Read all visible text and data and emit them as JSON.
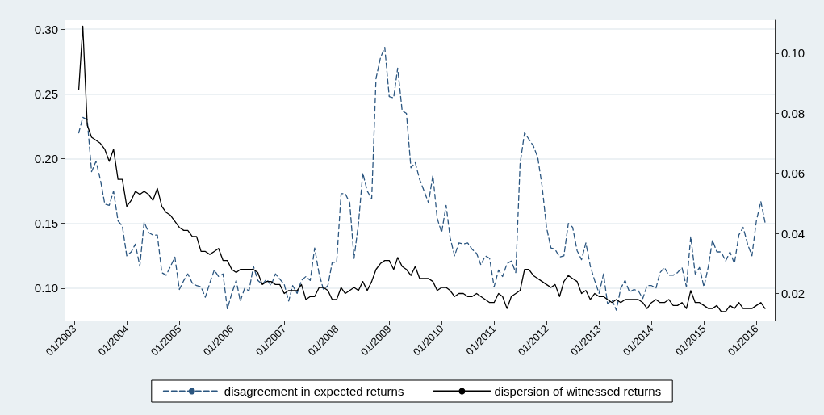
{
  "chart_data": {
    "type": "line",
    "x": [
      "2003-02",
      "2003-03",
      "2003-04",
      "2003-05",
      "2003-06",
      "2003-07",
      "2003-08",
      "2003-09",
      "2003-10",
      "2003-11",
      "2003-12",
      "2004-01",
      "2004-02",
      "2004-03",
      "2004-04",
      "2004-05",
      "2004-06",
      "2004-07",
      "2004-08",
      "2004-09",
      "2004-10",
      "2004-11",
      "2004-12",
      "2005-01",
      "2005-02",
      "2005-03",
      "2005-04",
      "2005-05",
      "2005-06",
      "2005-07",
      "2005-08",
      "2005-09",
      "2005-10",
      "2005-11",
      "2005-12",
      "2006-01",
      "2006-02",
      "2006-03",
      "2006-04",
      "2006-05",
      "2006-06",
      "2006-07",
      "2006-08",
      "2006-09",
      "2006-10",
      "2006-11",
      "2006-12",
      "2007-01",
      "2007-02",
      "2007-03",
      "2007-04",
      "2007-05",
      "2007-06",
      "2007-07",
      "2007-08",
      "2007-09",
      "2007-10",
      "2007-11",
      "2007-12",
      "2008-01",
      "2008-02",
      "2008-03",
      "2008-04",
      "2008-05",
      "2008-06",
      "2008-07",
      "2008-08",
      "2008-09",
      "2008-10",
      "2008-11",
      "2008-12",
      "2009-01",
      "2009-02",
      "2009-03",
      "2009-04",
      "2009-05",
      "2009-06",
      "2009-07",
      "2009-08",
      "2009-09",
      "2009-10",
      "2009-11",
      "2009-12",
      "2010-01",
      "2010-02",
      "2010-03",
      "2010-04",
      "2010-05",
      "2010-06",
      "2010-07",
      "2010-08",
      "2010-09",
      "2010-10",
      "2010-11",
      "2010-12",
      "2011-01",
      "2011-02",
      "2011-03",
      "2011-04",
      "2011-05",
      "2011-06",
      "2011-07",
      "2011-08",
      "2011-09",
      "2011-10",
      "2011-11",
      "2011-12",
      "2012-01",
      "2012-02",
      "2012-03",
      "2012-04",
      "2012-05",
      "2012-06",
      "2012-07",
      "2012-08",
      "2012-09",
      "2012-10",
      "2012-11",
      "2012-12",
      "2013-01",
      "2013-02",
      "2013-03",
      "2013-04",
      "2013-05",
      "2013-06",
      "2013-07",
      "2013-08",
      "2013-09",
      "2013-10",
      "2013-11",
      "2013-12",
      "2014-01",
      "2014-02",
      "2014-03",
      "2014-04",
      "2014-05",
      "2014-06",
      "2014-07",
      "2014-08",
      "2014-09",
      "2014-10",
      "2014-11",
      "2014-12",
      "2015-01",
      "2015-02",
      "2015-03",
      "2015-04",
      "2015-05",
      "2015-06",
      "2015-07",
      "2015-08",
      "2015-09",
      "2015-10",
      "2015-11",
      "2015-12",
      "2016-01",
      "2016-02",
      "2016-03"
    ],
    "series": [
      {
        "name": "disagreement in expected returns",
        "color": "#2b5680",
        "line_style": "dashed",
        "values": [
          0.22,
          0.232,
          0.23,
          0.19,
          0.198,
          0.184,
          0.165,
          0.164,
          0.175,
          0.152,
          0.148,
          0.125,
          0.128,
          0.134,
          0.117,
          0.151,
          0.143,
          0.141,
          0.141,
          0.112,
          0.11,
          0.117,
          0.124,
          0.099,
          0.106,
          0.111,
          0.104,
          0.102,
          0.101,
          0.093,
          0.104,
          0.114,
          0.109,
          0.111,
          0.084,
          0.096,
          0.106,
          0.09,
          0.1,
          0.098,
          0.117,
          0.106,
          0.103,
          0.107,
          0.102,
          0.111,
          0.107,
          0.103,
          0.09,
          0.102,
          0.096,
          0.106,
          0.109,
          0.106,
          0.131,
          0.111,
          0.099,
          0.102,
          0.12,
          0.12,
          0.173,
          0.173,
          0.166,
          0.123,
          0.15,
          0.189,
          0.175,
          0.169,
          0.262,
          0.278,
          0.286,
          0.248,
          0.247,
          0.27,
          0.237,
          0.235,
          0.193,
          0.197,
          0.184,
          0.175,
          0.166,
          0.187,
          0.154,
          0.143,
          0.164,
          0.139,
          0.125,
          0.135,
          0.134,
          0.135,
          0.13,
          0.127,
          0.118,
          0.125,
          0.123,
          0.101,
          0.114,
          0.109,
          0.119,
          0.121,
          0.112,
          0.196,
          0.22,
          0.215,
          0.21,
          0.201,
          0.179,
          0.147,
          0.131,
          0.13,
          0.124,
          0.125,
          0.15,
          0.147,
          0.129,
          0.122,
          0.135,
          0.117,
          0.106,
          0.096,
          0.111,
          0.088,
          0.091,
          0.083,
          0.1,
          0.106,
          0.097,
          0.099,
          0.098,
          0.092,
          0.102,
          0.102,
          0.1,
          0.112,
          0.116,
          0.11,
          0.11,
          0.112,
          0.116,
          0.101,
          0.14,
          0.111,
          0.116,
          0.101,
          0.117,
          0.137,
          0.128,
          0.128,
          0.121,
          0.128,
          0.119,
          0.141,
          0.147,
          0.134,
          0.125,
          0.152,
          0.167,
          0.151
        ]
      },
      {
        "name": "dispersion of witnessed returns",
        "color": "#000000",
        "line_style": "solid",
        "axis": "y2",
        "values": [
          0.088,
          0.109,
          0.076,
          0.072,
          0.071,
          0.07,
          0.068,
          0.064,
          0.068,
          0.058,
          0.058,
          0.049,
          0.051,
          0.054,
          0.053,
          0.054,
          0.053,
          0.051,
          0.055,
          0.049,
          0.047,
          0.046,
          0.044,
          0.042,
          0.041,
          0.041,
          0.039,
          0.039,
          0.034,
          0.034,
          0.033,
          0.034,
          0.035,
          0.031,
          0.031,
          0.028,
          0.027,
          0.028,
          0.028,
          0.028,
          0.028,
          0.027,
          0.023,
          0.024,
          0.024,
          0.023,
          0.023,
          0.02,
          0.021,
          0.021,
          0.021,
          0.023,
          0.018,
          0.019,
          0.019,
          0.022,
          0.022,
          0.021,
          0.018,
          0.018,
          0.022,
          0.02,
          0.021,
          0.022,
          0.021,
          0.024,
          0.021,
          0.024,
          0.028,
          0.03,
          0.031,
          0.031,
          0.028,
          0.032,
          0.029,
          0.028,
          0.026,
          0.029,
          0.025,
          0.025,
          0.025,
          0.024,
          0.021,
          0.022,
          0.022,
          0.021,
          0.019,
          0.02,
          0.02,
          0.019,
          0.019,
          0.02,
          0.019,
          0.018,
          0.017,
          0.017,
          0.02,
          0.019,
          0.015,
          0.019,
          0.02,
          0.021,
          0.028,
          0.028,
          0.026,
          0.025,
          0.024,
          0.023,
          0.022,
          0.023,
          0.019,
          0.024,
          0.026,
          0.025,
          0.024,
          0.02,
          0.021,
          0.018,
          0.02,
          0.019,
          0.019,
          0.018,
          0.017,
          0.018,
          0.017,
          0.018,
          0.018,
          0.018,
          0.018,
          0.017,
          0.015,
          0.017,
          0.018,
          0.017,
          0.017,
          0.018,
          0.016,
          0.016,
          0.017,
          0.015,
          0.021,
          0.017,
          0.017,
          0.016,
          0.015,
          0.015,
          0.016,
          0.014,
          0.014,
          0.016,
          0.015,
          0.017,
          0.015,
          0.015,
          0.015,
          0.016,
          0.017,
          0.015
        ]
      }
    ],
    "xlim": [
      "2002-10-25",
      "2016-05-08"
    ],
    "xticks": [
      {
        "value": "2003-01",
        "label": "01/2003"
      },
      {
        "value": "2004-01",
        "label": "01/2004"
      },
      {
        "value": "2005-01",
        "label": "01/2005"
      },
      {
        "value": "2006-01",
        "label": "01/2006"
      },
      {
        "value": "2007-01",
        "label": "01/2007"
      },
      {
        "value": "2008-01",
        "label": "01/2008"
      },
      {
        "value": "2009-01",
        "label": "01/2009"
      },
      {
        "value": "2010-01",
        "label": "01/2010"
      },
      {
        "value": "2011-01",
        "label": "01/2011"
      },
      {
        "value": "2012-01",
        "label": "01/2012"
      },
      {
        "value": "2013-01",
        "label": "01/2013"
      },
      {
        "value": "2014-01",
        "label": "01/2014"
      },
      {
        "value": "2015-01",
        "label": "01/2015"
      },
      {
        "value": "2016-01",
        "label": "01/2016"
      }
    ],
    "ylim": [
      0.075,
      0.307
    ],
    "yticks": [
      {
        "value": 0.1,
        "label": "0.10"
      },
      0.15,
      {
        "value": 0.2,
        "label": "0.20"
      },
      0.25,
      {
        "value": 0.3,
        "label": "0.30"
      }
    ],
    "y2lim": [
      0.011,
      0.111
    ],
    "y2ticks": [
      0.02,
      0.04,
      0.06,
      0.08,
      {
        "value": 0.1,
        "label": "0.10"
      }
    ],
    "grid": "y",
    "legend": "bottom",
    "marker": "none"
  }
}
